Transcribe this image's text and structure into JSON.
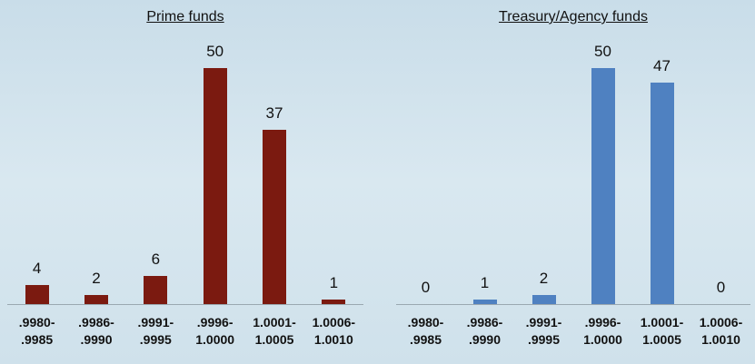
{
  "chart_data": [
    {
      "type": "bar",
      "title": "Prime funds",
      "categories": [
        ".9980-\n.9985",
        ".9986-\n.9990",
        ".9991-\n.9995",
        ".9996-\n1.0000",
        "1.0001-\n1.0005",
        "1.0006-\n1.0010"
      ],
      "values": [
        4,
        2,
        6,
        50,
        37,
        1
      ],
      "color": "#7b1a10"
    },
    {
      "type": "bar",
      "title": "Treasury/Agency funds",
      "categories": [
        ".9980-\n.9985",
        ".9986-\n.9990",
        ".9991-\n.9995",
        ".9996-\n1.0000",
        "1.0001-\n1.0005",
        "1.0006-\n1.0010"
      ],
      "values": [
        0,
        1,
        2,
        50,
        47,
        0
      ],
      "color": "#4f81c1"
    }
  ]
}
